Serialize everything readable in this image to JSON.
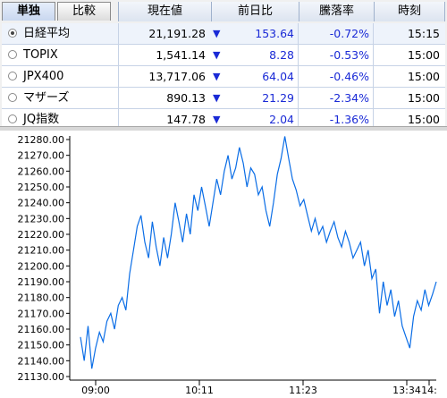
{
  "tabs": [
    "単独",
    "比較"
  ],
  "columns": {
    "price": "現在値",
    "change": "前日比",
    "pct": "騰落率",
    "time": "時刻"
  },
  "rows": [
    {
      "name": "日経平均",
      "price": "21,191.28",
      "arrow": "▼",
      "change": "153.64",
      "pct": "-0.72%",
      "time": "15:15",
      "selected": true
    },
    {
      "name": "TOPIX",
      "price": "1,541.14",
      "arrow": "▼",
      "change": "8.28",
      "pct": "-0.53%",
      "time": "15:00",
      "selected": false
    },
    {
      "name": "JPX400",
      "price": "13,717.06",
      "arrow": "▼",
      "change": "64.04",
      "pct": "-0.46%",
      "time": "15:00",
      "selected": false
    },
    {
      "name": "マザーズ",
      "price": "890.13",
      "arrow": "▼",
      "change": "21.29",
      "pct": "-2.34%",
      "time": "15:00",
      "selected": false
    },
    {
      "name": "JQ指数",
      "price": "147.78",
      "arrow": "▼",
      "change": "2.04",
      "pct": "-1.36%",
      "time": "15:00",
      "selected": false
    }
  ],
  "colors": {
    "down": "#1a2ad6",
    "line": "#0a6de6"
  },
  "chart_data": {
    "type": "line",
    "ylim": [
      21130,
      21280
    ],
    "y_ticks": [
      "21280.00",
      "21270.00",
      "21260.00",
      "21250.00",
      "21240.00",
      "21230.00",
      "21220.00",
      "21210.00",
      "21200.00",
      "21190.00",
      "21180.00",
      "21170.00",
      "21160.00",
      "21150.00",
      "21140.00",
      "21130.00"
    ],
    "x_ticks": [
      "09:00",
      "10:11",
      "11:23",
      "13:34",
      "14:"
    ],
    "series": [
      {
        "values": [
          21155,
          21140,
          21162,
          21135,
          21148,
          21158,
          21152,
          21165,
          21170,
          21160,
          21175,
          21180,
          21172,
          21195,
          21210,
          21225,
          21232,
          21215,
          21205,
          21228,
          21212,
          21200,
          21218,
          21205,
          21220,
          21240,
          21228,
          21215,
          21233,
          21220,
          21245,
          21235,
          21250,
          21238,
          21225,
          21240,
          21255,
          21245,
          21260,
          21270,
          21255,
          21262,
          21275,
          21265,
          21250,
          21262,
          21258,
          21245,
          21250,
          21235,
          21225,
          21240,
          21258,
          21268,
          21282,
          21268,
          21255,
          21248,
          21238,
          21242,
          21232,
          21222,
          21230,
          21220,
          21225,
          21215,
          21222,
          21228,
          21218,
          21212,
          21222,
          21215,
          21205,
          21210,
          21215,
          21200,
          21210,
          21192,
          21198,
          21170,
          21190,
          21175,
          21185,
          21168,
          21178,
          21162,
          21155,
          21148,
          21168,
          21178,
          21172,
          21185,
          21175,
          21182,
          21190
        ]
      }
    ]
  }
}
